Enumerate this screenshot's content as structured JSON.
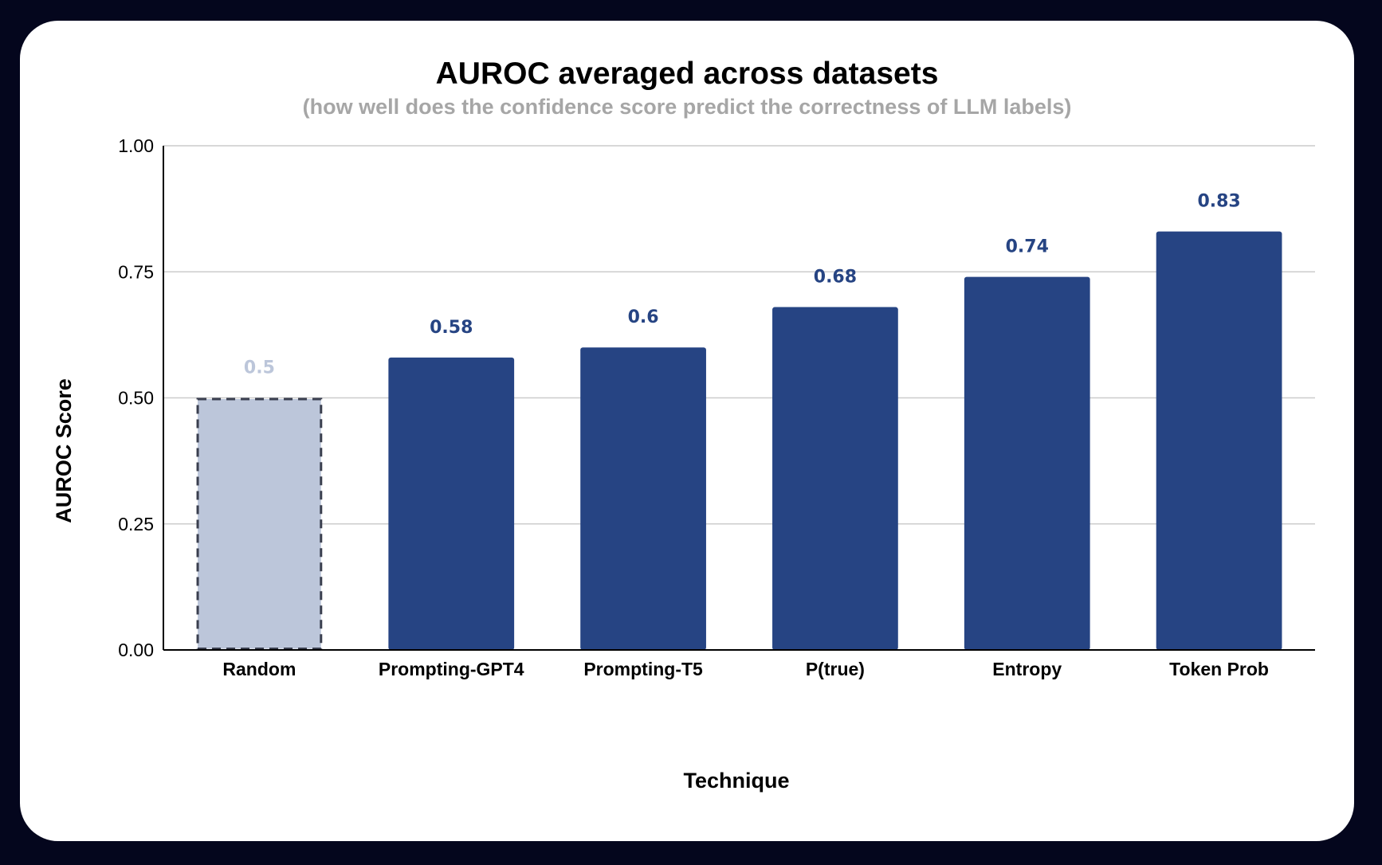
{
  "chart_data": {
    "type": "bar",
    "title": "AUROC averaged across datasets",
    "subtitle": "(how well does the confidence score predict the correctness of LLM labels)",
    "xlabel": "Technique",
    "ylabel": "AUROC Score",
    "categories": [
      "Random",
      "Prompting-GPT4",
      "Prompting-T5",
      "P(true)",
      "Entropy",
      "Token Prob"
    ],
    "values": [
      0.5,
      0.58,
      0.6,
      0.68,
      0.74,
      0.83
    ],
    "data_labels": [
      "0.5",
      "0.58",
      "0.6",
      "0.68",
      "0.74",
      "0.83"
    ],
    "ylim": [
      0,
      1
    ],
    "yticks": [
      "0.00",
      "0.25",
      "0.50",
      "0.75",
      "1.00"
    ],
    "grid": true,
    "legend": "none",
    "colors": {
      "bar": "#264483",
      "baseline_bar": "#bcc6da",
      "baseline_border": "#3a3f4f",
      "baseline_label": "#bcc6da",
      "grid": "#cccccc",
      "axis": "#000000"
    },
    "baseline_category": "Random"
  }
}
